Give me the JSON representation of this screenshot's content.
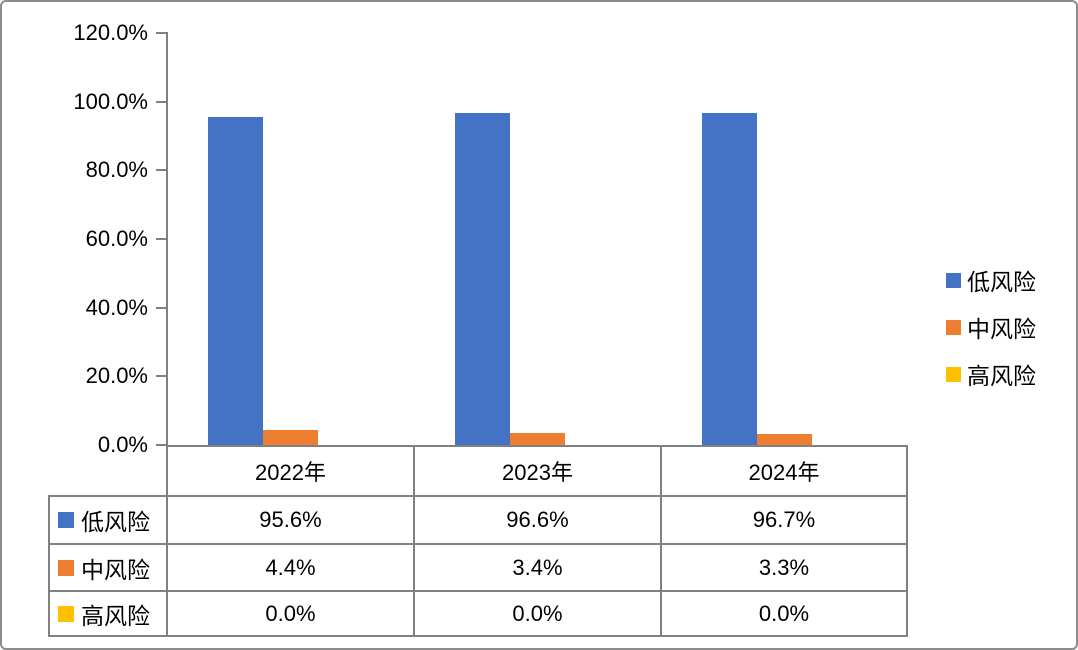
{
  "chart_data": {
    "type": "bar",
    "title": "",
    "xlabel": "",
    "ylabel": "",
    "categories": [
      "2022年",
      "2023年",
      "2024年"
    ],
    "series": [
      {
        "key": "low-risk",
        "name": "低风险",
        "color": "#4472C4",
        "values": [
          95.6,
          96.6,
          96.7
        ],
        "labels": [
          "95.6%",
          "96.6%",
          "96.7%"
        ]
      },
      {
        "key": "medium-risk",
        "name": "中风险",
        "color": "#ED7D31",
        "values": [
          4.4,
          3.4,
          3.3
        ],
        "labels": [
          "4.4%",
          "3.4%",
          "3.3%"
        ]
      },
      {
        "key": "high-risk",
        "name": "高风险",
        "color": "#FFC000",
        "values": [
          0.0,
          0.0,
          0.0
        ],
        "labels": [
          "0.0%",
          "0.0%",
          "0.0%"
        ]
      }
    ],
    "ylim": [
      0,
      120
    ],
    "ytick_step": 20,
    "ytick_labels": [
      "0.0%",
      "20.0%",
      "40.0%",
      "60.0%",
      "80.0%",
      "100.0%",
      "120.0%"
    ],
    "grid": false,
    "legend_position": "right",
    "legend_entries": [
      "低风险",
      "中风险",
      "高风险"
    ],
    "data_table_shown": true
  },
  "colors": {
    "axis_line": "#808080",
    "table_border": "#808080",
    "frame_border": "#8C8C8C",
    "background": "#FFFFFF",
    "text": "#000000",
    "series_blue": "#4472C4",
    "series_orange": "#ED7D31",
    "series_yellow": "#FFC000"
  }
}
